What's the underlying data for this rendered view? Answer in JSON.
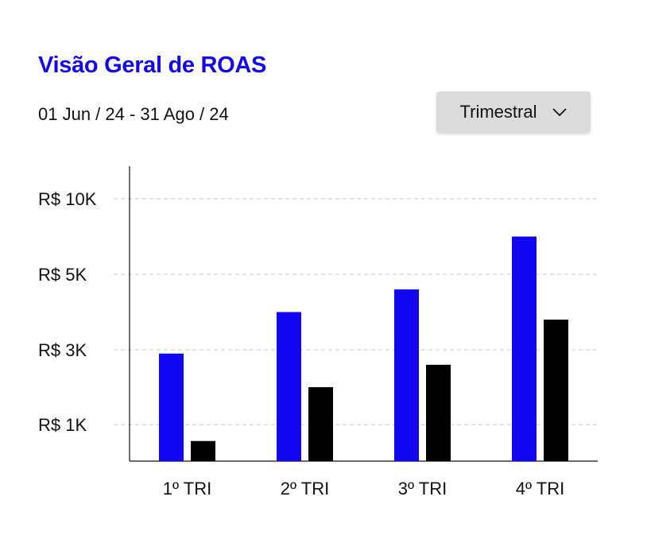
{
  "header": {
    "title": "Visão Geral de ROAS",
    "date_range": "01 Jun / 24 - 31 Ago / 24"
  },
  "period_select": {
    "selected": "Trimestral",
    "icon": "chevron-down-icon"
  },
  "colors": {
    "title": "#1205f0",
    "series_a": "#1205f0",
    "series_b": "#000000",
    "grid": "#c8c8c8"
  },
  "chart_data": {
    "type": "bar",
    "title": "Visão Geral de ROAS",
    "categories": [
      "1º TRI",
      "2º TRI",
      "3º TRI",
      "4º TRI"
    ],
    "y_tick_labels": [
      "R$ 10K",
      "R$ 5K",
      "R$ 3K",
      "R$ 1K"
    ],
    "y_tick_values": [
      10000,
      5000,
      3000,
      1000
    ],
    "scale": "nonlinear (ticks evenly spaced: 1K, 3K, 5K, 10K)",
    "grid": true,
    "legend": "none",
    "series": [
      {
        "values": [
          2900,
          4000,
          4600,
          7500
        ]
      },
      {
        "values": [
          550,
          2000,
          2600,
          3800
        ]
      }
    ]
  }
}
